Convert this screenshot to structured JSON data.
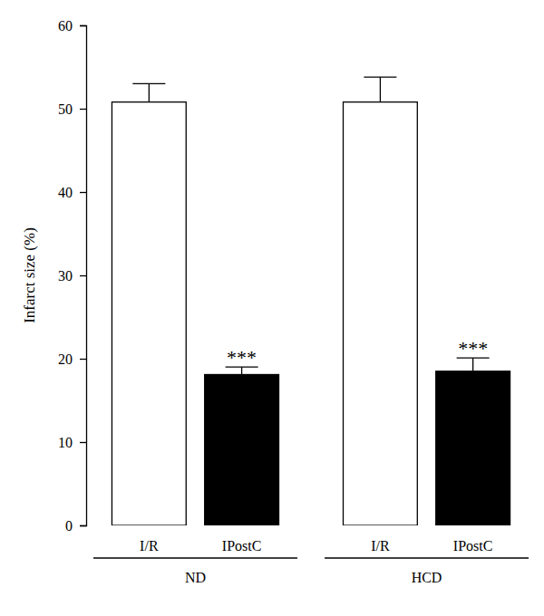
{
  "chart_data": {
    "type": "bar",
    "y_label": "Infarct size (%)",
    "categories": [
      "I/R",
      "IPostC",
      "I/R",
      "IPostC"
    ],
    "groups": [
      "ND",
      "HCD"
    ],
    "values": [
      50.8,
      18.1,
      50.8,
      18.5
    ],
    "errors": [
      2.2,
      0.9,
      3.0,
      1.6
    ],
    "annotations": [
      null,
      "***",
      null,
      "***"
    ],
    "colors": [
      "#ffffff",
      "#000000",
      "#ffffff",
      "#000000"
    ],
    "ylim": [
      0,
      60
    ],
    "yticks": [
      0,
      10,
      20,
      30,
      40,
      50,
      60
    ],
    "grid": false
  }
}
